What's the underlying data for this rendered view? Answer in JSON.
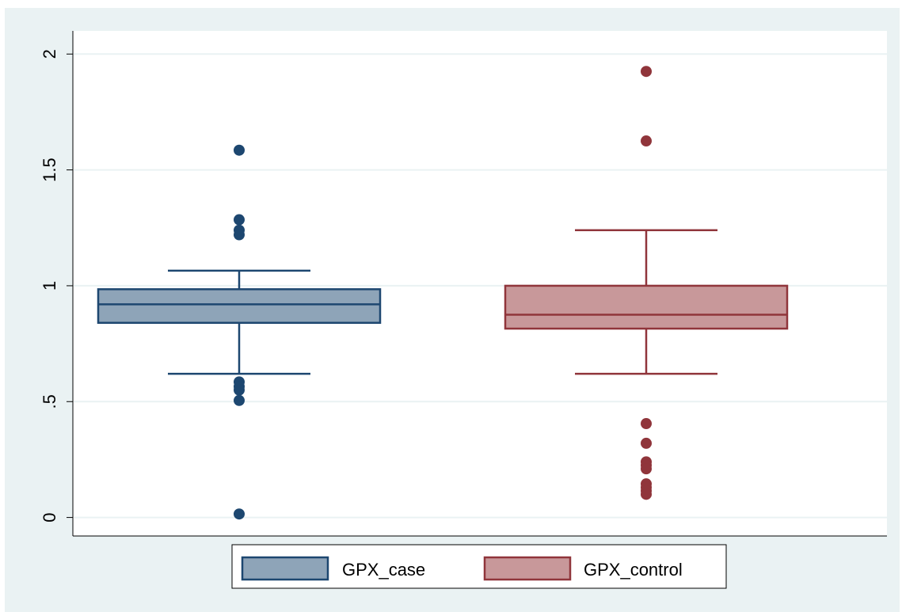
{
  "chart_data": {
    "type": "box",
    "title": "",
    "xlabel": "",
    "ylabel": "",
    "ylim": [
      -0.08,
      2.1
    ],
    "yticks": [
      {
        "value": 0,
        "label": "0"
      },
      {
        "value": 0.5,
        "label": ".5"
      },
      {
        "value": 1,
        "label": "1"
      },
      {
        "value": 1.5,
        "label": "1.5"
      },
      {
        "value": 2,
        "label": "2"
      }
    ],
    "grid": true,
    "legend_position": "bottom",
    "series": [
      {
        "name": "GPX_case",
        "fill": "#8ea4b8",
        "stroke": "#1d4770",
        "whisker_low": 0.62,
        "q1": 0.84,
        "median": 0.92,
        "q3": 0.985,
        "whisker_high": 1.065,
        "outliers": [
          1.585,
          1.285,
          1.24,
          1.22,
          0.585,
          0.565,
          0.55,
          0.505,
          0.015
        ]
      },
      {
        "name": "GPX_control",
        "fill": "#c8989a",
        "stroke": "#90353b",
        "whisker_low": 0.62,
        "q1": 0.815,
        "median": 0.875,
        "q3": 1.0,
        "whisker_high": 1.24,
        "outliers": [
          1.925,
          1.625,
          0.405,
          0.32,
          0.24,
          0.225,
          0.21,
          0.145,
          0.13,
          0.115,
          0.1
        ]
      }
    ]
  }
}
